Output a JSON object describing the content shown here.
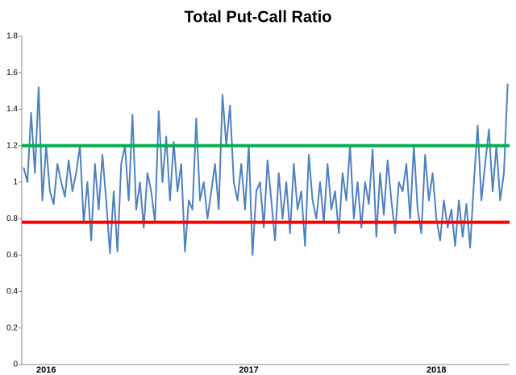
{
  "chart_data": {
    "type": "line",
    "title": "Total Put-Call Ratio",
    "categories": [
      null,
      null,
      null,
      null,
      null,
      null,
      "2016",
      null,
      null,
      null,
      null,
      null,
      null,
      null,
      null,
      null,
      null,
      null,
      null,
      null,
      null,
      null,
      null,
      null,
      null,
      null,
      null,
      null,
      null,
      null,
      null,
      null,
      null,
      null,
      null,
      null,
      null,
      null,
      null,
      null,
      null,
      null,
      null,
      null,
      null,
      null,
      null,
      null,
      null,
      null,
      null,
      null,
      null,
      null,
      null,
      null,
      null,
      null,
      null,
      null,
      "2017",
      null,
      null,
      null,
      null,
      null,
      null,
      null,
      null,
      null,
      null,
      null,
      null,
      null,
      null,
      null,
      null,
      null,
      null,
      null,
      null,
      null,
      null,
      null,
      null,
      null,
      null,
      null,
      null,
      null,
      null,
      null,
      null,
      null,
      null,
      null,
      null,
      null,
      null,
      null,
      null,
      null,
      null,
      null,
      null,
      null,
      null,
      null,
      null,
      null,
      "2018",
      null,
      null,
      null,
      null,
      null,
      null,
      null,
      null,
      null,
      null,
      null,
      null,
      null,
      null,
      null,
      null,
      null,
      null,
      null
    ],
    "values": [
      1.08,
      1.0,
      1.38,
      1.05,
      1.52,
      0.9,
      1.2,
      0.95,
      0.88,
      1.1,
      1.0,
      0.92,
      1.12,
      0.95,
      1.05,
      1.2,
      0.78,
      1.0,
      0.68,
      1.1,
      0.85,
      1.15,
      0.9,
      0.61,
      0.95,
      0.62,
      1.1,
      1.2,
      0.9,
      1.37,
      0.85,
      1.0,
      0.75,
      1.05,
      0.95,
      0.78,
      1.39,
      1.0,
      1.25,
      0.9,
      1.22,
      0.95,
      1.1,
      0.62,
      0.9,
      0.85,
      1.35,
      0.9,
      1.0,
      0.8,
      0.95,
      1.1,
      0.85,
      1.48,
      1.2,
      1.42,
      1.0,
      0.9,
      1.1,
      0.85,
      1.2,
      0.6,
      0.95,
      1.0,
      0.75,
      1.12,
      0.9,
      0.68,
      1.05,
      0.8,
      1.0,
      0.72,
      1.1,
      0.85,
      0.95,
      0.65,
      1.15,
      0.9,
      0.8,
      1.0,
      0.78,
      1.1,
      0.85,
      0.95,
      0.72,
      1.05,
      0.9,
      1.2,
      0.8,
      1.0,
      0.75,
      1.0,
      0.88,
      1.18,
      0.7,
      1.05,
      0.82,
      1.12,
      0.9,
      0.72,
      1.0,
      0.95,
      1.1,
      0.8,
      1.2,
      0.85,
      0.72,
      1.15,
      0.9,
      1.05,
      0.8,
      0.68,
      0.9,
      0.75,
      0.85,
      0.65,
      0.9,
      0.7,
      0.88,
      0.64,
      1.0,
      1.31,
      0.9,
      1.1,
      1.29,
      0.95,
      1.2,
      0.9,
      1.05,
      1.54
    ],
    "color": "#4f81bd",
    "reference_lines": [
      {
        "value": 1.2,
        "color": "#00b050"
      },
      {
        "value": 0.78,
        "color": "#ff0000"
      }
    ],
    "ylim": [
      0,
      1.8
    ],
    "yticks": [
      0,
      0.2,
      0.4,
      0.6,
      0.8,
      1,
      1.2,
      1.4,
      1.6,
      1.8
    ],
    "grid": false
  }
}
